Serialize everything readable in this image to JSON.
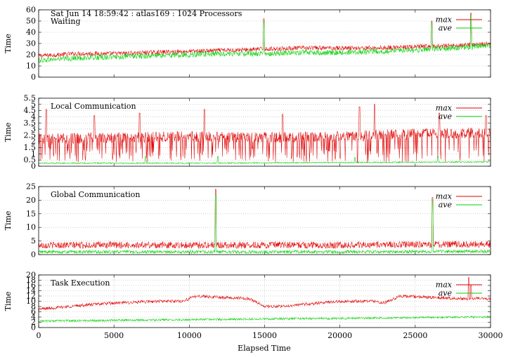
{
  "header": {
    "line1": "Sat Jun 14 18:59:42 : atlas169 : 1024 Processors"
  },
  "colors": {
    "max": "#e00000",
    "ave": "#00d000",
    "grid": "#b0b0b0"
  },
  "chart_data": [
    {
      "type": "line",
      "title": "Waiting",
      "ylabel": "Time",
      "xlim": [
        0,
        30000
      ],
      "ylim": [
        0,
        60
      ],
      "yticks": [
        "0",
        "10",
        "20",
        "30",
        "40",
        "50",
        "60"
      ],
      "yticks_values": [
        0,
        10,
        20,
        30,
        40,
        50,
        60
      ],
      "grid": true,
      "legend": "top-right",
      "series": [
        {
          "name": "max",
          "x": [
            0,
            2500,
            5000,
            7500,
            10000,
            12500,
            15000,
            17500,
            20000,
            22500,
            25000,
            27500,
            30000
          ],
          "y": [
            19,
            21,
            21,
            22,
            23,
            24,
            25,
            26,
            26,
            26,
            27,
            28,
            30
          ],
          "noise": 4,
          "spikes": [
            [
              14950,
              52
            ],
            [
              26100,
              50
            ],
            [
              28700,
              57
            ]
          ]
        },
        {
          "name": "ave",
          "x": [
            0,
            2500,
            5000,
            7500,
            10000,
            12500,
            15000,
            17500,
            20000,
            22500,
            25000,
            27500,
            30000
          ],
          "y": [
            15,
            17,
            18,
            19,
            20,
            21,
            21,
            22,
            22,
            23,
            24,
            26,
            28
          ],
          "noise": 5,
          "spikes": [
            [
              14950,
              50
            ],
            [
              26100,
              48
            ],
            [
              28700,
              55
            ]
          ]
        }
      ]
    },
    {
      "type": "line",
      "title": "Local Communication",
      "ylabel": "Time",
      "xlim": [
        0,
        30000
      ],
      "ylim": [
        0,
        5.5
      ],
      "yticks": [
        "0",
        "0.5",
        "1",
        "1.5",
        "2",
        "2.5",
        "3",
        "3.5",
        "4",
        "4.5",
        "5",
        "5.5"
      ],
      "yticks_values": [
        0,
        0.5,
        1,
        1.5,
        2,
        2.5,
        3,
        3.5,
        4,
        4.5,
        5,
        5.5
      ],
      "grid": true,
      "legend": "top-right",
      "series": [
        {
          "name": "max",
          "x": [
            0,
            5000,
            10000,
            15000,
            20000,
            25000,
            30000
          ],
          "y": [
            2.2,
            2.3,
            2.4,
            2.3,
            2.4,
            2.6,
            2.7
          ],
          "noise": 1.6,
          "spikes": [
            [
              500,
              4.6
            ],
            [
              3700,
              4.1
            ],
            [
              6700,
              4.3
            ],
            [
              11000,
              4.6
            ],
            [
              16200,
              4.2
            ],
            [
              21300,
              4.8
            ],
            [
              22300,
              5.0
            ],
            [
              26600,
              4.3
            ],
            [
              29700,
              4.1
            ]
          ]
        },
        {
          "name": "ave",
          "x": [
            0,
            10000,
            20000,
            30000
          ],
          "y": [
            0.25,
            0.25,
            0.3,
            0.35
          ],
          "noise": 0.1,
          "spikes": [
            [
              7100,
              0.8
            ],
            [
              11900,
              0.8
            ],
            [
              21000,
              0.7
            ],
            [
              26500,
              0.8
            ]
          ]
        }
      ]
    },
    {
      "type": "line",
      "title": "Global Communication",
      "ylabel": "Time",
      "xlim": [
        0,
        30000
      ],
      "ylim": [
        0,
        25
      ],
      "yticks": [
        "0",
        "5",
        "10",
        "15",
        "20",
        "25"
      ],
      "yticks_values": [
        0,
        5,
        10,
        15,
        20,
        25
      ],
      "grid": true,
      "legend": "top-right",
      "series": [
        {
          "name": "max",
          "x": [
            0,
            10000,
            20000,
            30000
          ],
          "y": [
            3.5,
            3.5,
            3.5,
            3.8
          ],
          "noise": 2.5,
          "spikes": [
            [
              11750,
              24
            ],
            [
              26150,
              21
            ]
          ]
        },
        {
          "name": "ave",
          "x": [
            0,
            10000,
            20000,
            30000
          ],
          "y": [
            1.0,
            1.0,
            1.0,
            1.2
          ],
          "noise": 1.2,
          "spikes": [
            [
              11750,
              22
            ],
            [
              26150,
              20
            ]
          ]
        }
      ]
    },
    {
      "type": "line",
      "title": "Task Execution",
      "ylabel": "Time",
      "xlabel": "Elapsed Time",
      "xlim": [
        0,
        30000
      ],
      "ylim": [
        0,
        20
      ],
      "yticks": [
        "0",
        "2",
        "4",
        "6",
        "8",
        "10",
        "12",
        "14",
        "16",
        "18",
        "20"
      ],
      "yticks_values": [
        0,
        2,
        4,
        6,
        8,
        10,
        12,
        14,
        16,
        18,
        20
      ],
      "xticks": [
        "0",
        "5000",
        "10000",
        "15000",
        "20000",
        "25000",
        "30000"
      ],
      "xticks_values": [
        0,
        5000,
        10000,
        15000,
        20000,
        25000,
        30000
      ],
      "grid": true,
      "legend": "top-right",
      "series": [
        {
          "name": "max",
          "x": [
            0,
            2000,
            4000,
            6000,
            8000,
            9500,
            10500,
            12000,
            14000,
            15000,
            16000,
            18000,
            20000,
            22000,
            23000,
            24000,
            26000,
            28000,
            28500
          ],
          "y": [
            7,
            8,
            9,
            9.5,
            10,
            10,
            12,
            11.5,
            11,
            8,
            8,
            9,
            10,
            10,
            9.5,
            12,
            11.5,
            11,
            11
          ],
          "noise": 1.2,
          "spikes": [
            [
              28550,
              19
            ],
            [
              28700,
              16
            ]
          ]
        },
        {
          "name": "ave",
          "x": [
            0,
            10000,
            20000,
            28500
          ],
          "y": [
            2.5,
            3,
            3.5,
            4
          ],
          "noise": 0.8,
          "spikes": []
        }
      ]
    }
  ]
}
